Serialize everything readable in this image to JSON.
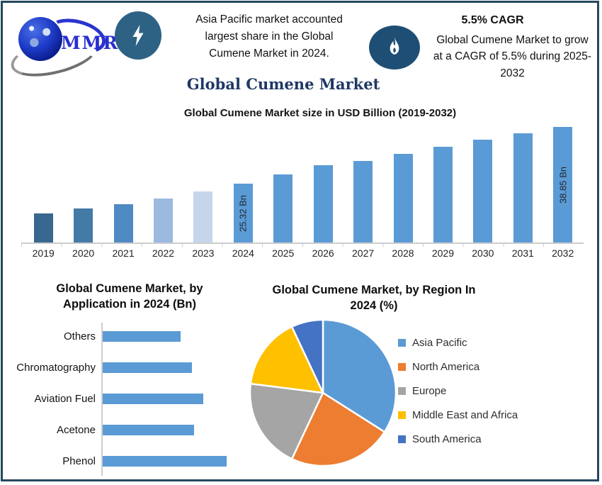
{
  "page": {
    "brand": "MMR",
    "statement": "Asia Pacific market accounted\nlargest share in the Global\nCumene Market in 2024.",
    "cagr_headline": "5.5% CAGR",
    "cagr_description": "Global Cumene Market to grow\nat a CAGR of 5.5% during 2025-\n2032",
    "main_title": "Global Cumene Market"
  },
  "colors": {
    "frame_border": "#24485e",
    "bolt_badge": "#2e6285",
    "flame_badge": "#1f4e74",
    "title_navy": "#1f3864",
    "bar_primary": "#5b9bd5",
    "axis_gray": "#cdcdcd"
  },
  "chart_data": [
    {
      "type": "bar",
      "title": "Global Cumene Market size in USD Billion (2019-2032)",
      "categories": [
        "2019",
        "2020",
        "2021",
        "2022",
        "2023",
        "2024",
        "2025",
        "2026",
        "2027",
        "2028",
        "2029",
        "2030",
        "2031",
        "2032"
      ],
      "values": [
        18.4,
        19.5,
        20.6,
        21.9,
        23.5,
        25.32,
        27.6,
        29.8,
        30.8,
        32.5,
        34.1,
        35.8,
        37.3,
        38.85
      ],
      "unit": "USD Billion",
      "values_estimated_from_bar_heights": true,
      "labeled_points": [
        {
          "category": "2024",
          "label": "25.32 Bn"
        },
        {
          "category": "2032",
          "label": "38.85 Bn"
        }
      ],
      "ylim": [
        11.45,
        38.85
      ],
      "gridlines": false,
      "legend": false,
      "bar_colors": [
        "#38678f",
        "#447aa6",
        "#4f8ac3",
        "#9bbade",
        "#c5d6ec",
        "#5b9bd5",
        "#5b9bd5",
        "#5b9bd5",
        "#5b9bd5",
        "#5b9bd5",
        "#5b9bd5",
        "#5b9bd5",
        "#5b9bd5",
        "#5b9bd5"
      ]
    },
    {
      "type": "bar",
      "orientation": "horizontal",
      "title": "Global Cumene Market, by\nApplication in 2024 (Bn)",
      "categories": [
        "Others",
        "Chromatography",
        "Aviation Fuel",
        "Acetone",
        "Phenol"
      ],
      "values": [
        4.1,
        4.7,
        5.3,
        4.8,
        6.5
      ],
      "unit": "USD Billion",
      "values_estimated_from_bar_lengths": true,
      "bar_color": "#5b9bd5",
      "gridlines": false,
      "legend": false
    },
    {
      "type": "pie",
      "title": "Global Cumene Market, by Region In\n2024 (%)",
      "categories": [
        "Asia Pacific",
        "North America",
        "Europe",
        "Middle East and Africa",
        "South America"
      ],
      "values": [
        34,
        23,
        20,
        16,
        7
      ],
      "unit": "%",
      "values_estimated_from_slice_angles": true,
      "slice_colors": [
        "#5b9bd5",
        "#ed7d31",
        "#a5a5a5",
        "#ffc000",
        "#4472c4"
      ],
      "start_angle": "top",
      "direction": "clockwise",
      "legend_position": "right"
    }
  ]
}
